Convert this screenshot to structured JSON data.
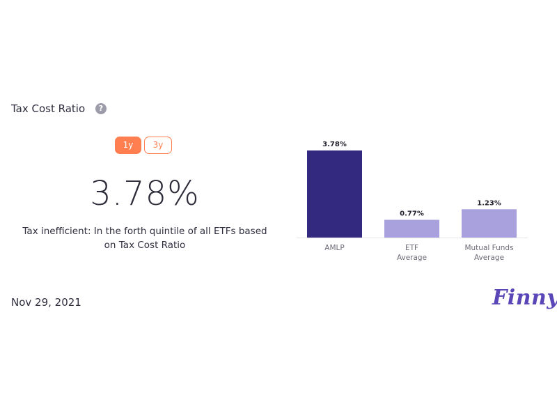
{
  "widget": {
    "title": "Tax Cost Ratio",
    "help_icon": "?",
    "periods": [
      "1y",
      "3y"
    ],
    "selected_period": "1y",
    "value": "3.78%",
    "description": "Tax inefficient: In the forth quintile of all ETFs based on Tax Cost Ratio",
    "date": "Nov 29, 2021",
    "brand": "Finny"
  },
  "colors": {
    "accent": "#ff7f50",
    "primary_bar": "#33297f",
    "comparison_bar": "#a9a1de",
    "logo": "#5b46b8"
  },
  "chart_data": {
    "type": "bar",
    "categories": [
      [
        "AMLP"
      ],
      [
        "ETF",
        "Average"
      ],
      [
        "Mutual Funds",
        "Average"
      ]
    ],
    "values": [
      3.78,
      0.77,
      1.23
    ],
    "value_labels": [
      "3.78%",
      "0.77%",
      "1.23%"
    ],
    "bar_colors": [
      "#33297f",
      "#a9a1de",
      "#a9a1de"
    ],
    "grid": false,
    "legend": "none"
  }
}
